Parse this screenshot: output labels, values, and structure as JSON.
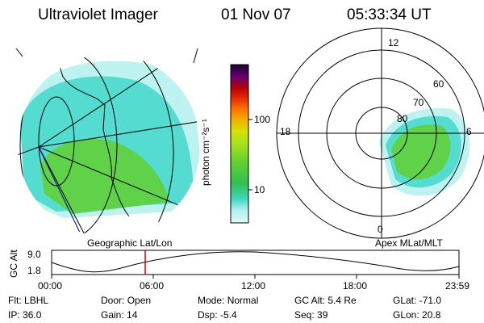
{
  "header": {
    "instrument": "Ultraviolet Imager",
    "date": "01 Nov 07",
    "time": "05:33:34 UT"
  },
  "colorbar": {
    "unit_label": "photon cm⁻²s⁻¹",
    "ticks": [
      "100",
      "10"
    ],
    "colors": [
      "#1a0030",
      "#3a0060",
      "#6a0070",
      "#8a0040",
      "#b00010",
      "#e02000",
      "#ff7000",
      "#f0b000",
      "#d8e000",
      "#a8e020",
      "#60d030",
      "#30c050",
      "#40d8c0",
      "#70e8e0",
      "#b0f0f0",
      "#e0f8f8"
    ]
  },
  "left_map": {
    "label": "Geographic Lat/Lon",
    "aurora_colors": {
      "cyan": "#55dcd0",
      "light": "#bdf2f0",
      "green": "#5fd24a"
    }
  },
  "right_map": {
    "label": "Apex MLat/MLT",
    "mlt_labels": {
      "top": "12",
      "left": "18",
      "right": "6",
      "bottom": "0"
    },
    "mlat_labels": [
      "60",
      "70",
      "80"
    ]
  },
  "timeline": {
    "ylabel": "GC Alt",
    "yticks": [
      "9.0",
      "1.8"
    ],
    "xticks": [
      "00:00",
      "06:00",
      "12:00",
      "18:00",
      "23:59"
    ],
    "marker_time_hours": 5.56,
    "marker_color": "#cc0000"
  },
  "status": {
    "row1": [
      {
        "label": "Flt:",
        "value": "LBHL"
      },
      {
        "label": "Door:",
        "value": "Open"
      },
      {
        "label": "Mode:",
        "value": "Normal"
      },
      {
        "label": "GC Alt:",
        "value": "5.4 Re"
      },
      {
        "label": "GLat:",
        "value": "-71.0"
      }
    ],
    "row2": [
      {
        "label": "IP:",
        "value": "36.0"
      },
      {
        "label": "Gain:",
        "value": "14"
      },
      {
        "label": "Dsp:",
        "value": "-5.4"
      },
      {
        "label": "Seq:",
        "value": "39"
      },
      {
        "label": "GLon:",
        "value": "20.8"
      }
    ]
  }
}
